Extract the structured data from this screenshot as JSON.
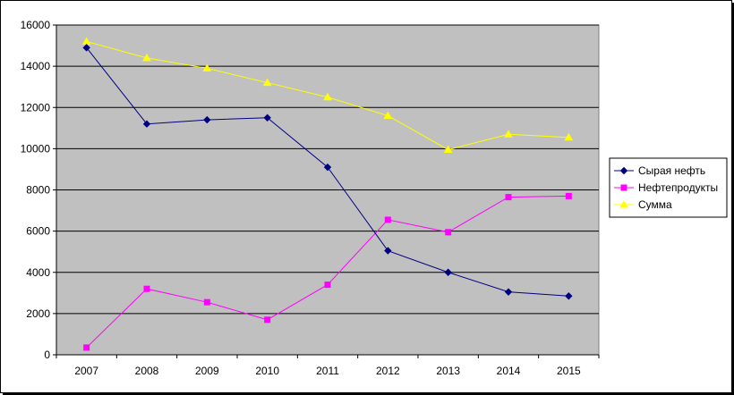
{
  "chart_data": {
    "type": "line",
    "title": "",
    "xlabel": "",
    "ylabel": "",
    "categories": [
      "2007",
      "2008",
      "2009",
      "2010",
      "2011",
      "2012",
      "2013",
      "2014",
      "2015"
    ],
    "ylim": [
      0,
      16000
    ],
    "yticks": [
      0,
      2000,
      4000,
      6000,
      8000,
      10000,
      12000,
      14000,
      16000
    ],
    "grid": true,
    "legend": "right",
    "plot_background": "#C0C0C0",
    "series": [
      {
        "name": "Сырая нефть",
        "color": "#000080",
        "marker": "diamond",
        "values": [
          14900,
          11200,
          11400,
          11500,
          9100,
          5050,
          4000,
          3050,
          2850
        ]
      },
      {
        "name": "Нефтепродукты",
        "color": "#FF00FF",
        "marker": "square",
        "values": [
          350,
          3200,
          2550,
          1700,
          3400,
          6550,
          5950,
          7650,
          7700
        ]
      },
      {
        "name": "Сумма",
        "color": "#FFFF00",
        "marker": "triangle",
        "values": [
          15200,
          14400,
          13900,
          13200,
          12500,
          11600,
          9950,
          10700,
          10550
        ]
      }
    ]
  }
}
